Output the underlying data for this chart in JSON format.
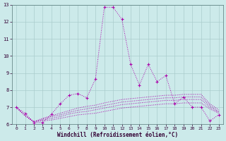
{
  "xlabel": "Windchill (Refroidissement éolien,°C)",
  "bg_color": "#cceaea",
  "line_color": "#aa00aa",
  "grid_color": "#aacccc",
  "xlim": [
    -0.5,
    23.5
  ],
  "ylim": [
    6.0,
    13.0
  ],
  "xticks": [
    0,
    1,
    2,
    3,
    4,
    5,
    6,
    7,
    8,
    9,
    10,
    11,
    12,
    13,
    14,
    15,
    16,
    17,
    18,
    19,
    20,
    21,
    22,
    23
  ],
  "yticks": [
    6,
    7,
    8,
    9,
    10,
    11,
    12,
    13
  ],
  "main_line_x": [
    0,
    1,
    2,
    3,
    4,
    5,
    6,
    7,
    8,
    9,
    10,
    11,
    12,
    13,
    14,
    15,
    16,
    17,
    18,
    19,
    20,
    21,
    22,
    23
  ],
  "main_line_y": [
    7.0,
    6.65,
    6.1,
    6.1,
    6.6,
    7.2,
    7.7,
    7.8,
    7.55,
    8.65,
    12.85,
    12.85,
    12.15,
    9.5,
    8.3,
    9.5,
    8.5,
    8.85,
    7.2,
    7.6,
    7.0,
    7.0,
    6.2,
    6.55
  ],
  "flat_lines": [
    [
      7.0,
      6.5,
      6.15,
      6.2,
      6.25,
      6.35,
      6.45,
      6.55,
      6.6,
      6.65,
      6.75,
      6.85,
      6.95,
      7.0,
      7.05,
      7.1,
      7.15,
      7.2,
      7.2,
      7.25,
      7.25,
      7.25,
      6.9,
      6.65
    ],
    [
      7.0,
      6.5,
      6.15,
      6.25,
      6.35,
      6.45,
      6.6,
      6.7,
      6.75,
      6.85,
      6.95,
      7.05,
      7.15,
      7.2,
      7.25,
      7.3,
      7.35,
      7.4,
      7.4,
      7.45,
      7.45,
      7.45,
      7.0,
      6.7
    ],
    [
      7.0,
      6.5,
      6.15,
      6.3,
      6.45,
      6.55,
      6.7,
      6.82,
      6.9,
      6.98,
      7.1,
      7.2,
      7.3,
      7.35,
      7.4,
      7.45,
      7.5,
      7.55,
      7.55,
      7.6,
      7.6,
      7.6,
      7.1,
      6.75
    ],
    [
      7.0,
      6.5,
      6.15,
      6.35,
      6.5,
      6.65,
      6.8,
      6.95,
      7.05,
      7.12,
      7.25,
      7.35,
      7.45,
      7.5,
      7.55,
      7.6,
      7.65,
      7.7,
      7.7,
      7.75,
      7.75,
      7.75,
      7.2,
      6.85
    ]
  ]
}
